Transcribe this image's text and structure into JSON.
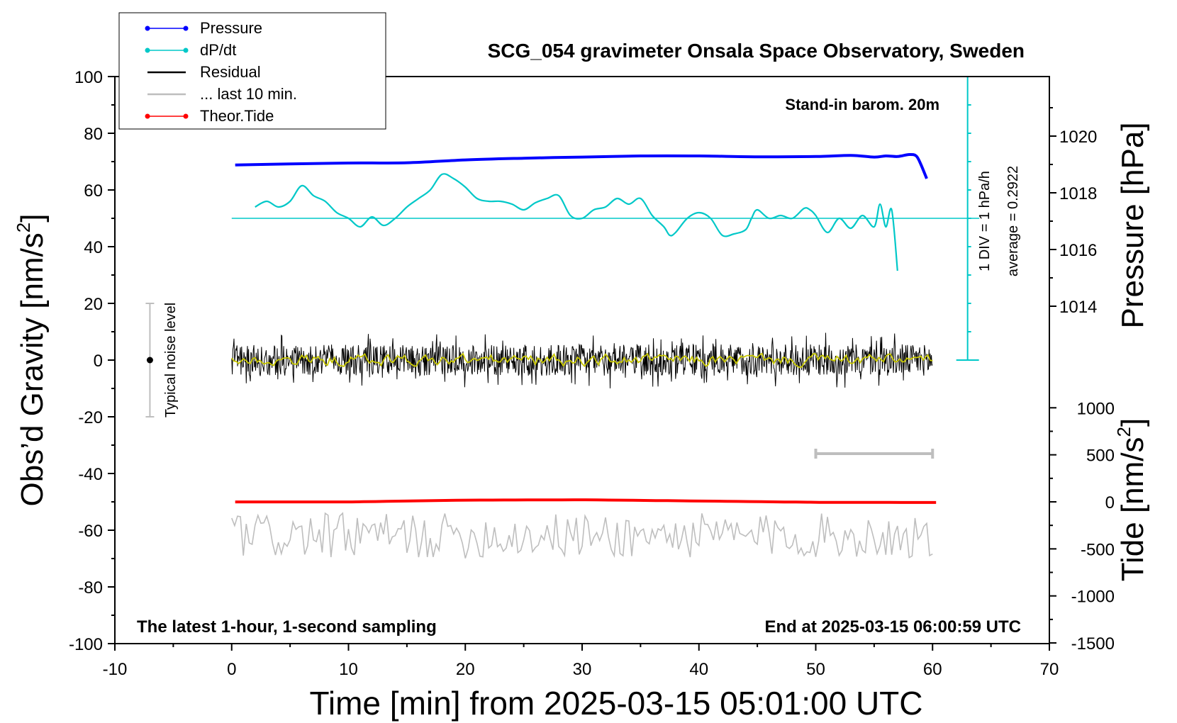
{
  "chart_data": {
    "type": "line",
    "title": "SCG_054 gravimeter Onsala Space Observatory, Sweden",
    "annotations": {
      "top_right": "Stand-in barom. 20m",
      "bottom_left": "The latest 1-hour, 1-second sampling",
      "bottom_right": "End at 2025-03-15 06:00:59 UTC",
      "noise_label": "Typical noise level",
      "div_label": "1 DIV = 1 hPa/h",
      "average_label": "average = 0.2922"
    },
    "xlabel": "Time [min] from 2025-03-15 05:01:00 UTC",
    "xlim": [
      -10,
      70
    ],
    "xticks": [
      "-10",
      "0",
      "10",
      "20",
      "30",
      "40",
      "50",
      "60",
      "70"
    ],
    "y_left": {
      "label_main": "Obs’d Gravity [nm/s",
      "label_sup": "2",
      "label_end": "]",
      "range": [
        -100,
        100
      ],
      "ticks": [
        "100",
        "80",
        "60",
        "40",
        "20",
        "0",
        "-20",
        "-40",
        "-60",
        "-80",
        "-100"
      ]
    },
    "y_right_pressure": {
      "label": "Pressure [hPa]",
      "ticks": [
        {
          "v": 1020,
          "label": "1020"
        },
        {
          "v": 1018,
          "label": "1018"
        },
        {
          "v": 1016,
          "label": "1016"
        },
        {
          "v": 1014,
          "label": "1014"
        }
      ]
    },
    "y_right_tide": {
      "label_main": "Tide [nm/s",
      "label_sup": "2",
      "label_end": "]",
      "ticks": [
        {
          "v": 1000,
          "label": "1000"
        },
        {
          "v": 500,
          "label": "500"
        },
        {
          "v": 0,
          "label": "0"
        },
        {
          "v": -500,
          "label": "-500"
        },
        {
          "v": -1000,
          "label": "-1000"
        },
        {
          "v": -1500,
          "label": "-1500"
        }
      ]
    },
    "legend": {
      "position": "top-left",
      "entries": [
        {
          "label": "Pressure",
          "color": "#0000ff",
          "marker": true
        },
        {
          "label": "dP/dt",
          "color": "#00c8c8",
          "marker": true
        },
        {
          "label": "Residual",
          "color": "#000000",
          "marker": false
        },
        {
          "label": "... last 10 min.",
          "color": "#bebebe",
          "marker": false
        },
        {
          "label": "Theor.Tide",
          "color": "#ff0000",
          "marker": true
        }
      ]
    },
    "series": [
      {
        "name": "Pressure",
        "color": "#0000ff",
        "unit": "nm/s2 plot scale",
        "x": [
          0.3,
          5,
          10,
          15,
          20,
          25,
          30,
          35,
          40,
          45,
          50,
          53,
          55,
          56,
          57,
          58,
          58.6,
          59,
          59.5
        ],
        "y": [
          68.8,
          69.2,
          69.5,
          69.6,
          70.6,
          71.2,
          71.6,
          72.0,
          72.0,
          71.7,
          71.8,
          72.2,
          71.6,
          72.0,
          71.8,
          72.5,
          72.0,
          69.0,
          64.0
        ]
      },
      {
        "name": "dP/dt",
        "color": "#00c8c8",
        "unit": "nm/s2 plot scale",
        "x": [
          2,
          3,
          4,
          5,
          6,
          7,
          8,
          9,
          10,
          11,
          12,
          13,
          14,
          15,
          16,
          17,
          18,
          19,
          20,
          21,
          22,
          23,
          24,
          25,
          26,
          27,
          28,
          29,
          30,
          31,
          32,
          33,
          34,
          35,
          36,
          37,
          37.5,
          38,
          39,
          40,
          41,
          42,
          43,
          44,
          44.5,
          45,
          46,
          47,
          48,
          49,
          49.5,
          50,
          51,
          52,
          53,
          54,
          55,
          55.5,
          56,
          56.5,
          57
        ],
        "y": [
          54,
          56,
          54,
          56,
          61.5,
          58,
          56,
          52,
          50,
          47,
          50.5,
          47.5,
          50,
          54,
          57,
          60,
          65.5,
          64,
          61,
          57,
          56,
          56,
          55,
          53,
          55.5,
          57,
          58,
          51,
          50,
          53,
          54,
          57,
          55,
          57,
          51,
          47,
          44,
          45,
          50,
          52,
          50,
          44,
          44.5,
          46,
          50,
          53,
          50,
          51,
          50,
          53.5,
          53,
          51,
          45,
          50,
          46.5,
          51,
          47,
          55,
          47,
          53,
          31.5
        ]
      },
      {
        "name": "dP/dt zero line",
        "color": "#00c8c8",
        "unit": "nm/s2 plot scale",
        "x": [
          0,
          64
        ],
        "y": [
          50,
          50
        ]
      },
      {
        "name": "Residual",
        "color": "#000000",
        "unit": "nm/s2",
        "x_range": [
          0,
          60
        ],
        "mean": 0,
        "amplitude": 10
      },
      {
        "name": "Residual smoothed",
        "color": "#c8c800",
        "unit": "nm/s2",
        "x_range": [
          0,
          60
        ],
        "mean": 0,
        "amplitude": 2
      },
      {
        "name": "... last 10 min.",
        "color": "#bebebe",
        "unit": "nm/s2",
        "x_range": [
          0,
          60
        ],
        "mean": -62,
        "amplitude": 8
      },
      {
        "name": "Theor.Tide",
        "color": "#ff0000",
        "unit": "nm/s2",
        "x": [
          0,
          10,
          20,
          30,
          40,
          50,
          60
        ],
        "y": [
          -1,
          -1,
          18,
          22,
          9,
          -5,
          -7
        ]
      }
    ],
    "noise_bar": {
      "x": -7,
      "center": 0,
      "half_range": 20
    },
    "ten_min_bar": {
      "x_start": 50,
      "x_end": 60,
      "y": -33
    },
    "pressure_scale_bar": {
      "x": 63,
      "y_bottom": 0,
      "y_top": 100,
      "ticks": 11
    }
  }
}
